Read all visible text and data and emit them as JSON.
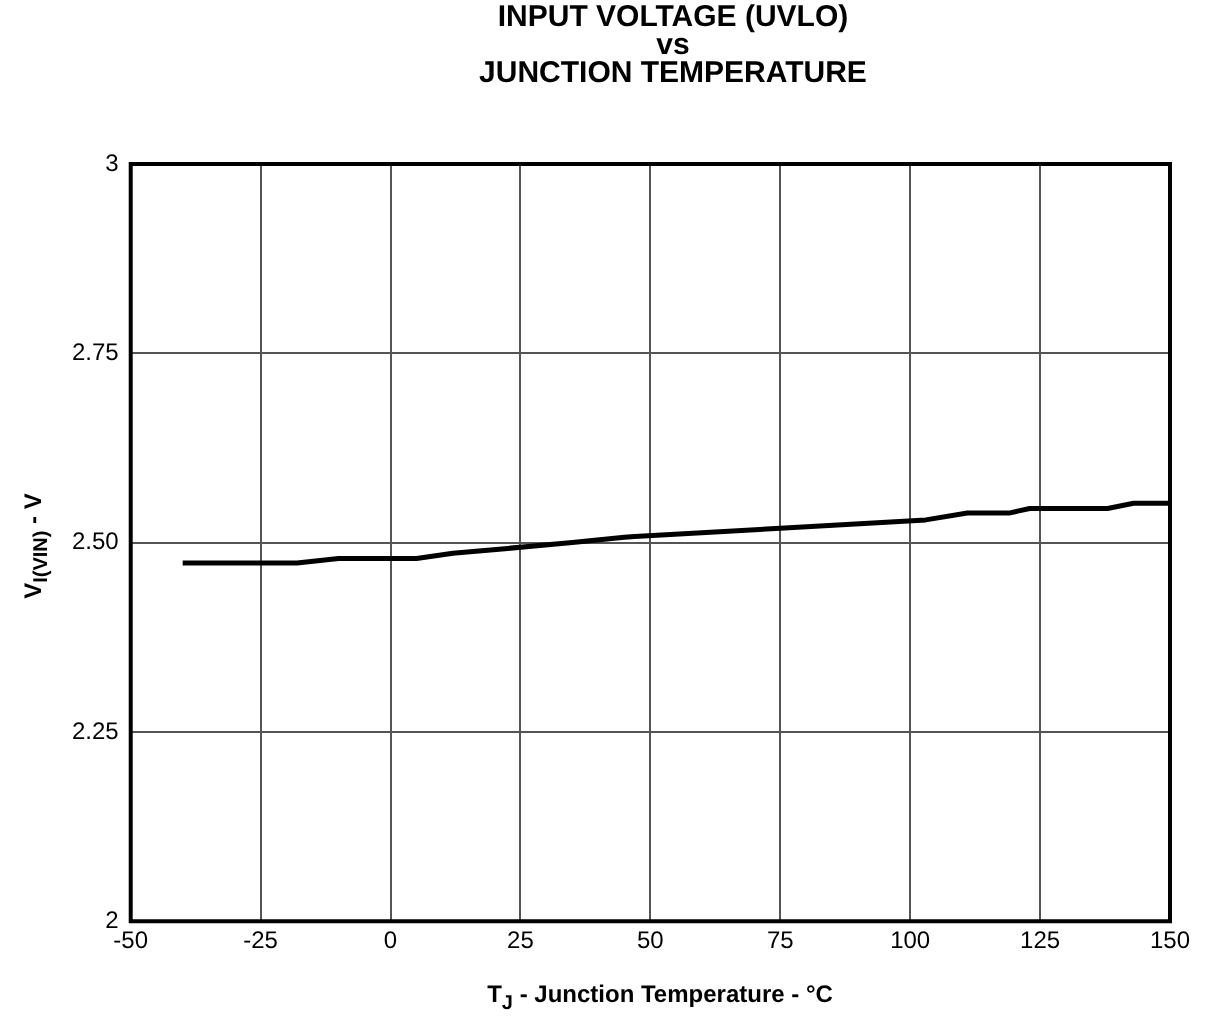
{
  "chart_data": {
    "type": "line",
    "title": "INPUT VOLTAGE (UVLO)\nvs\nJUNCTION TEMPERATURE",
    "xlabel": "T$_{J}$ - Junction Temperature - °C",
    "ylabel": "V$_{I(VIN)}$ - V",
    "x": [
      -40,
      -18,
      -10,
      0,
      5,
      12,
      22,
      35,
      45,
      47,
      75,
      103,
      111,
      119,
      123,
      138,
      143,
      150
    ],
    "series": [
      {
        "color": "#000000",
        "values": [
          2.473,
          2.473,
          2.479,
          2.479,
          2.479,
          2.486,
          2.492,
          2.5,
          2.507,
          2.508,
          2.519,
          2.53,
          2.539,
          2.539,
          2.545,
          2.545,
          2.552,
          2.552
        ]
      }
    ],
    "xlim": [
      -50,
      150
    ],
    "xticks": [
      -50,
      -25,
      0,
      25,
      50,
      75,
      100,
      125,
      150
    ],
    "ylim": [
      2,
      3
    ],
    "yticks": [
      2,
      2.25,
      {
        "value": 2.5,
        "label": "2.50"
      },
      2.75,
      3
    ],
    "grid": true,
    "legend": false,
    "marker": "none",
    "line_style": "solid"
  }
}
